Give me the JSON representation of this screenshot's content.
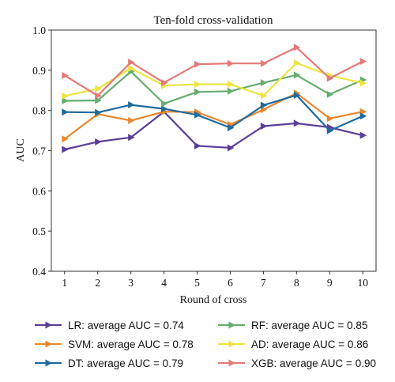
{
  "chart_data": {
    "type": "line",
    "title": "Ten-fold cross-validation",
    "xlabel": "Round of cross",
    "ylabel": "AUC",
    "x": [
      1,
      2,
      3,
      4,
      5,
      6,
      7,
      8,
      9,
      10
    ],
    "xticks": [
      "1",
      "2",
      "3",
      "4",
      "5",
      "6",
      "7",
      "8",
      "9",
      "10"
    ],
    "yticks": [
      "0.4",
      "0.5",
      "0.6",
      "0.7",
      "0.8",
      "0.9",
      "1.0"
    ],
    "ylim": [
      0.4,
      1.0
    ],
    "xlim": [
      0.6,
      10.4
    ],
    "grid": false,
    "legend_position": "bottom",
    "series": [
      {
        "name": "LR: average AUC = 0.74",
        "color": "#5a3f99",
        "values": [
          0.703,
          0.722,
          0.733,
          0.797,
          0.712,
          0.707,
          0.761,
          0.768,
          0.758,
          0.738
        ]
      },
      {
        "name": "SVM: average AUC = 0.78",
        "color": "#e8872e",
        "values": [
          0.729,
          0.791,
          0.775,
          0.797,
          0.796,
          0.765,
          0.802,
          0.843,
          0.78,
          0.797
        ]
      },
      {
        "name": "DT: average AUC = 0.79",
        "color": "#1f6a9e",
        "values": [
          0.796,
          0.795,
          0.814,
          0.804,
          0.789,
          0.757,
          0.813,
          0.838,
          0.75,
          0.786
        ]
      },
      {
        "name": "RF: average AUC = 0.85",
        "color": "#67ad6f",
        "values": [
          0.824,
          0.825,
          0.897,
          0.817,
          0.846,
          0.848,
          0.869,
          0.888,
          0.84,
          0.876
        ]
      },
      {
        "name": "AD: average AUC = 0.86",
        "color": "#ebe540",
        "values": [
          0.836,
          0.854,
          0.905,
          0.862,
          0.865,
          0.865,
          0.837,
          0.918,
          0.887,
          0.868
        ]
      },
      {
        "name": "XGB: average AUC = 0.90",
        "color": "#e27a78",
        "values": [
          0.887,
          0.837,
          0.92,
          0.869,
          0.915,
          0.917,
          0.917,
          0.957,
          0.88,
          0.922
        ]
      }
    ]
  }
}
